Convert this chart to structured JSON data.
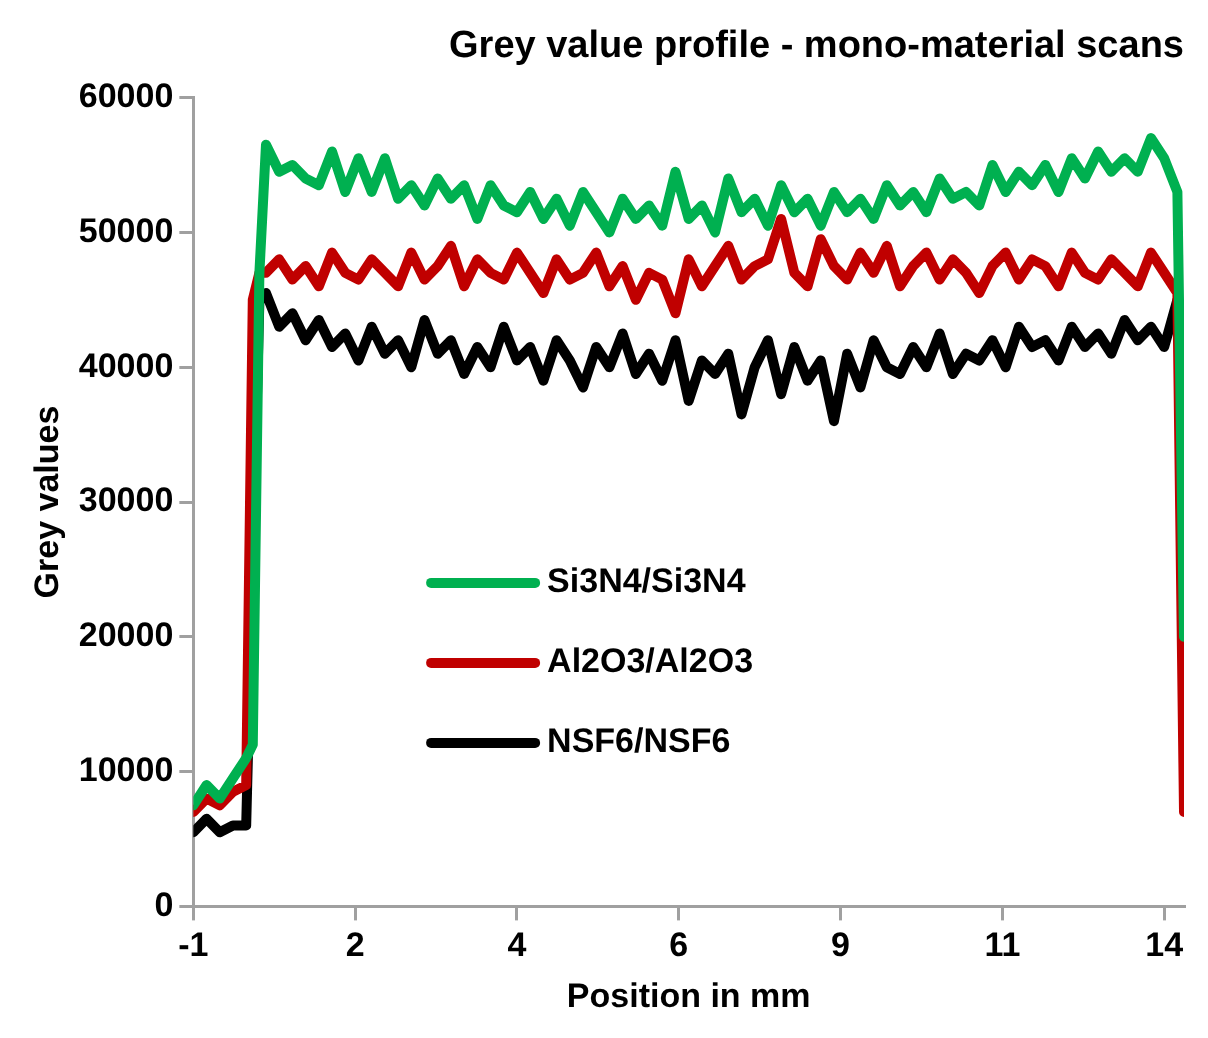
{
  "chart_data": {
    "type": "line",
    "title": "Grey value profile - mono-material scans",
    "xlabel": "Position in mm",
    "ylabel": "Grey values",
    "x": [
      -0.9,
      -0.7,
      -0.5,
      -0.3,
      -0.1,
      0.0,
      0.1,
      0.2,
      0.4,
      0.6,
      0.8,
      1.0,
      1.2,
      1.4,
      1.6,
      1.8,
      2.0,
      2.2,
      2.4,
      2.6,
      2.8,
      3.0,
      3.2,
      3.4,
      3.6,
      3.8,
      4.0,
      4.2,
      4.4,
      4.6,
      4.8,
      5.0,
      5.2,
      5.4,
      5.6,
      5.8,
      6.0,
      6.2,
      6.4,
      6.6,
      6.8,
      7.0,
      7.2,
      7.4,
      7.6,
      7.8,
      8.0,
      8.2,
      8.4,
      8.6,
      8.8,
      9.0,
      9.2,
      9.4,
      9.6,
      9.8,
      10.0,
      10.2,
      10.4,
      10.6,
      10.8,
      11.0,
      11.2,
      11.4,
      11.6,
      11.8,
      12.0,
      12.2,
      12.4,
      12.6,
      12.8,
      13.0,
      13.2,
      13.4,
      13.6,
      13.8,
      14.0,
      14.1
    ],
    "series": [
      {
        "name": "Si3N4/Si3N4",
        "color": "#00b050",
        "values": [
          7500,
          9000,
          8000,
          9500,
          11000,
          12000,
          47000,
          56500,
          54500,
          55000,
          54000,
          53500,
          56000,
          53000,
          55500,
          53000,
          55500,
          52500,
          53500,
          52000,
          54000,
          52500,
          53500,
          51000,
          53500,
          52000,
          51500,
          53000,
          51000,
          52500,
          50500,
          53000,
          51500,
          50000,
          52500,
          51000,
          52000,
          50500,
          54500,
          51000,
          52000,
          50000,
          54000,
          51500,
          52500,
          50500,
          53500,
          51500,
          52500,
          50500,
          53000,
          51500,
          52500,
          51000,
          53500,
          52000,
          53000,
          51500,
          54000,
          52500,
          53000,
          52000,
          55000,
          53000,
          54500,
          53500,
          55000,
          53000,
          55500,
          54000,
          56000,
          54500,
          55500,
          54500,
          57000,
          55500,
          53000,
          20000
        ]
      },
      {
        "name": "Al2O3/Al2O3",
        "color": "#c00000",
        "values": [
          7000,
          8000,
          7500,
          8500,
          9000,
          45000,
          47000,
          47000,
          48000,
          46500,
          47500,
          46000,
          48500,
          47000,
          46500,
          48000,
          47000,
          46000,
          48500,
          46500,
          47500,
          49000,
          46000,
          48000,
          47000,
          46500,
          48500,
          47000,
          45500,
          48000,
          46500,
          47000,
          48500,
          46000,
          47500,
          45000,
          47000,
          46500,
          44000,
          48000,
          46000,
          47500,
          49000,
          46500,
          47500,
          48000,
          51000,
          47000,
          46000,
          49500,
          47500,
          46500,
          48500,
          47000,
          49000,
          46000,
          47500,
          48500,
          46500,
          48000,
          47000,
          45500,
          47500,
          48500,
          46500,
          48000,
          47500,
          46000,
          48500,
          47000,
          46500,
          48000,
          47000,
          46000,
          48500,
          47000,
          45500,
          7000
        ]
      },
      {
        "name": "NSF6/NSF6",
        "color": "#000000",
        "values": [
          5500,
          6500,
          5500,
          6000,
          6000,
          null,
          45000,
          45500,
          43000,
          44000,
          42000,
          43500,
          41500,
          42500,
          40500,
          43000,
          41000,
          42000,
          40000,
          43500,
          41000,
          42000,
          39500,
          41500,
          40000,
          43000,
          40500,
          41500,
          39000,
          42000,
          40500,
          38500,
          41500,
          40000,
          42500,
          39500,
          41000,
          39000,
          42000,
          37500,
          40500,
          39500,
          41000,
          36500,
          40000,
          42000,
          38000,
          41500,
          39000,
          40500,
          36000,
          41000,
          38500,
          42000,
          40000,
          39500,
          41500,
          40000,
          42500,
          39500,
          41000,
          40500,
          42000,
          40000,
          43000,
          41500,
          42000,
          40500,
          43000,
          41500,
          42500,
          41000,
          43500,
          42000,
          43000,
          41500,
          45000,
          null
        ]
      }
    ],
    "xlim": [
      -0.9,
      14.1
    ],
    "xticks": [
      {
        "value": -0.9,
        "label": "-1"
      },
      {
        "value": 1.55,
        "label": "2"
      },
      {
        "value": 4.0,
        "label": "4"
      },
      {
        "value": 6.45,
        "label": "6"
      },
      {
        "value": 8.9,
        "label": "9"
      },
      {
        "value": 11.35,
        "label": "11"
      },
      {
        "value": 13.8,
        "label": "14"
      }
    ],
    "ylim": [
      0,
      60000
    ],
    "yticks": [
      0,
      10000,
      20000,
      30000,
      40000,
      50000,
      60000
    ],
    "grid": false,
    "legend": "bottom left",
    "marker": "none",
    "line_style": "solid"
  }
}
